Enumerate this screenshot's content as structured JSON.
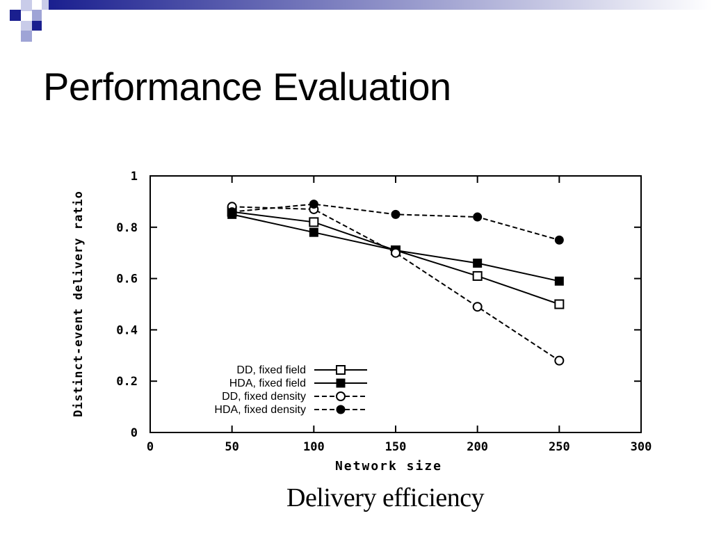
{
  "slide": {
    "title": "Performance Evaluation",
    "caption": "Delivery efficiency",
    "accent_color": "#1a1f8f",
    "accent_light": "#9fa4d6"
  },
  "chart_data": {
    "type": "line",
    "xlabel": "Network size",
    "ylabel": "Distinct-event delivery ratio",
    "xlim": [
      0,
      300
    ],
    "ylim": [
      0,
      1
    ],
    "xticks": [
      "0",
      "50",
      "100",
      "150",
      "200",
      "250",
      "300"
    ],
    "yticks": [
      "0",
      "0.2",
      "0.4",
      "0.6",
      "0.8",
      "1"
    ],
    "x": [
      50,
      100,
      150,
      200,
      250
    ],
    "legend_position": "bottom-left",
    "grid": false,
    "series": [
      {
        "name": "DD, fixed field",
        "values": [
          0.86,
          0.82,
          0.71,
          0.61,
          0.5
        ],
        "line": "solid",
        "marker": "open-square"
      },
      {
        "name": "HDA, fixed field",
        "values": [
          0.85,
          0.78,
          0.71,
          0.66,
          0.59
        ],
        "line": "solid",
        "marker": "filled-square"
      },
      {
        "name": "DD, fixed density",
        "values": [
          0.88,
          0.87,
          0.7,
          0.49,
          0.28
        ],
        "line": "dashed",
        "marker": "open-circle"
      },
      {
        "name": "HDA, fixed density",
        "values": [
          0.86,
          0.89,
          0.85,
          0.84,
          0.75
        ],
        "line": "dashed",
        "marker": "filled-circle"
      }
    ]
  }
}
